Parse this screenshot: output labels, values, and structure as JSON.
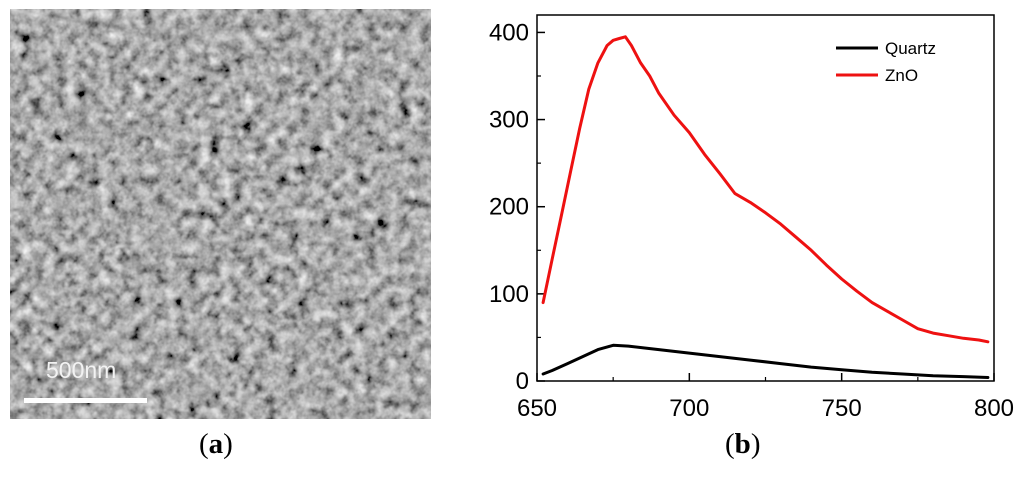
{
  "panels": {
    "a": {
      "caption_letter": "a",
      "scale_label": "500nm"
    },
    "b": {
      "caption_letter": "b"
    }
  },
  "chart_data": {
    "type": "line",
    "title": "",
    "xlabel": "",
    "ylabel": "",
    "xlim": [
      650,
      800
    ],
    "ylim": [
      0,
      420
    ],
    "x_ticks": [
      650,
      700,
      750,
      800
    ],
    "y_ticks": [
      0,
      100,
      200,
      300,
      400
    ],
    "grid": false,
    "legend_position": "top-right",
    "series": [
      {
        "name": "Quartz",
        "color": "#000000",
        "x": [
          652,
          655,
          660,
          665,
          670,
          675,
          680,
          685,
          690,
          695,
          700,
          705,
          710,
          720,
          730,
          740,
          750,
          760,
          770,
          780,
          790,
          798
        ],
        "y": [
          8,
          12,
          20,
          28,
          36,
          41,
          40,
          38,
          36,
          34,
          32,
          30,
          28,
          24,
          20,
          16,
          13,
          10,
          8,
          6,
          5,
          4
        ]
      },
      {
        "name": "ZnO",
        "color": "#ee1111",
        "x": [
          652,
          655,
          658,
          661,
          664,
          667,
          670,
          673,
          675,
          677,
          679,
          681,
          684,
          687,
          690,
          695,
          700,
          705,
          710,
          715,
          720,
          725,
          730,
          735,
          740,
          745,
          750,
          755,
          760,
          765,
          770,
          775,
          780,
          785,
          790,
          795,
          798
        ],
        "y": [
          90,
          140,
          190,
          240,
          290,
          335,
          365,
          385,
          391,
          393,
          395,
          385,
          365,
          350,
          330,
          305,
          285,
          260,
          238,
          215,
          205,
          193,
          180,
          165,
          150,
          133,
          117,
          103,
          90,
          80,
          70,
          60,
          55,
          52,
          49,
          47,
          45
        ]
      }
    ]
  }
}
